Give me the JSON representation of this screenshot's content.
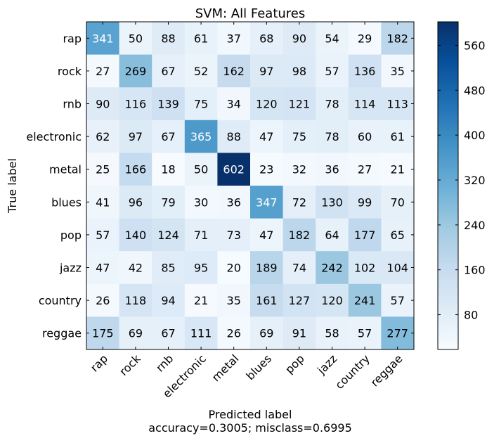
{
  "chart_data": {
    "type": "heatmap",
    "title": "SVM: All Features",
    "xlabel": "Predicted label",
    "ylabel": "True label",
    "caption": "accuracy=0.3005; misclass=0.6995",
    "x_categories": [
      "rap",
      "rock",
      "rnb",
      "electronic",
      "metal",
      "blues",
      "pop",
      "jazz",
      "country",
      "reggae"
    ],
    "y_categories": [
      "rap",
      "rock",
      "rnb",
      "electronic",
      "metal",
      "blues",
      "pop",
      "jazz",
      "country",
      "reggae"
    ],
    "values": [
      [
        341,
        50,
        88,
        61,
        37,
        68,
        90,
        54,
        29,
        182
      ],
      [
        27,
        269,
        67,
        52,
        162,
        97,
        98,
        57,
        136,
        35
      ],
      [
        90,
        116,
        139,
        75,
        34,
        120,
        121,
        78,
        114,
        113
      ],
      [
        62,
        97,
        67,
        365,
        88,
        47,
        75,
        78,
        60,
        61
      ],
      [
        25,
        166,
        18,
        50,
        602,
        23,
        32,
        36,
        27,
        21
      ],
      [
        41,
        96,
        79,
        30,
        36,
        347,
        72,
        130,
        99,
        70
      ],
      [
        57,
        140,
        124,
        71,
        73,
        47,
        182,
        64,
        177,
        65
      ],
      [
        47,
        42,
        85,
        95,
        20,
        189,
        74,
        242,
        102,
        104
      ],
      [
        26,
        118,
        94,
        21,
        35,
        161,
        127,
        120,
        241,
        57
      ],
      [
        175,
        69,
        67,
        111,
        26,
        69,
        91,
        58,
        57,
        277
      ]
    ],
    "colorscale": "Blues",
    "color_range": [
      18,
      602
    ],
    "colorbar_ticks": [
      80,
      160,
      240,
      320,
      400,
      480,
      560
    ]
  }
}
